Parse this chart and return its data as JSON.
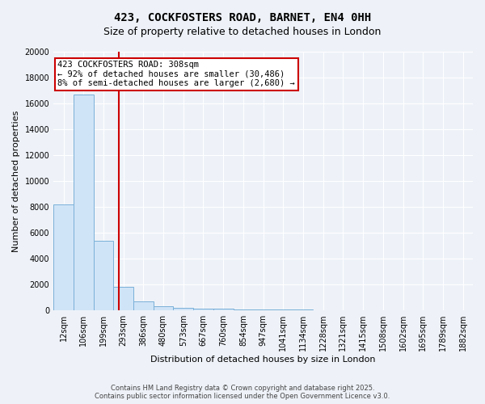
{
  "title": "423, COCKFOSTERS ROAD, BARNET, EN4 0HH",
  "subtitle": "Size of property relative to detached houses in London",
  "xlabel": "Distribution of detached houses by size in London",
  "ylabel": "Number of detached properties",
  "bar_labels": [
    "12sqm",
    "106sqm",
    "199sqm",
    "293sqm",
    "386sqm",
    "480sqm",
    "573sqm",
    "667sqm",
    "760sqm",
    "854sqm",
    "947sqm",
    "1041sqm",
    "1134sqm",
    "1228sqm",
    "1321sqm",
    "1415sqm",
    "1508sqm",
    "1602sqm",
    "1695sqm",
    "1789sqm",
    "1882sqm"
  ],
  "bar_values": [
    8200,
    16700,
    5400,
    1820,
    720,
    330,
    220,
    155,
    105,
    85,
    65,
    55,
    45,
    35,
    25,
    20,
    15,
    12,
    10,
    8,
    5
  ],
  "bar_color": "#d0e4f7",
  "bar_edge_color": "#7ab0d8",
  "vline_x_idx": 2.78,
  "vline_color": "#cc0000",
  "ylim": [
    0,
    20000
  ],
  "yticks": [
    0,
    2000,
    4000,
    6000,
    8000,
    10000,
    12000,
    14000,
    16000,
    18000,
    20000
  ],
  "annotation_line1": "423 COCKFOSTERS ROAD: 308sqm",
  "annotation_line2": "← 92% of detached houses are smaller (30,486)",
  "annotation_line3": "8% of semi-detached houses are larger (2,680) →",
  "annotation_box_color": "#cc0000",
  "background_color": "#eef2f8",
  "grid_color": "#ffffff",
  "footer_text": "Contains HM Land Registry data © Crown copyright and database right 2025.\nContains public sector information licensed under the Open Government Licence v3.0.",
  "title_fontsize": 10,
  "subtitle_fontsize": 9,
  "axis_label_fontsize": 8,
  "tick_fontsize": 7,
  "annotation_fontsize": 7.5,
  "footer_fontsize": 6
}
